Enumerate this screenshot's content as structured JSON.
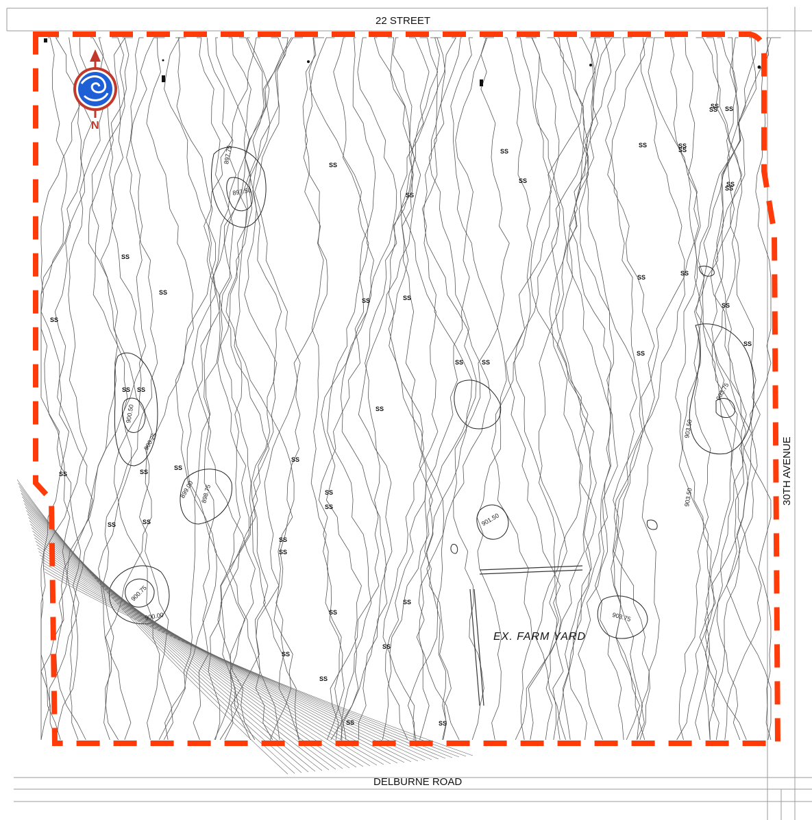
{
  "roads": {
    "north": "22 STREET",
    "south": "DELBURNE ROAD",
    "east": "30TH AVENUE"
  },
  "area_label": "EX. FARM YARD",
  "north_arrow": {
    "letter": "N",
    "icon": "compass-icon"
  },
  "boundary": {
    "color": "#ff3b0a",
    "style": "dashed"
  },
  "soil_markers": {
    "label": "SS",
    "count": 44
  },
  "elevation_labels": [
    "897.75",
    "897.50",
    "900.50",
    "900.25",
    "900.75",
    "900.00",
    "899.00",
    "898.75",
    "901.50",
    "903.50",
    "903.75",
    "903.50",
    "903.75"
  ]
}
